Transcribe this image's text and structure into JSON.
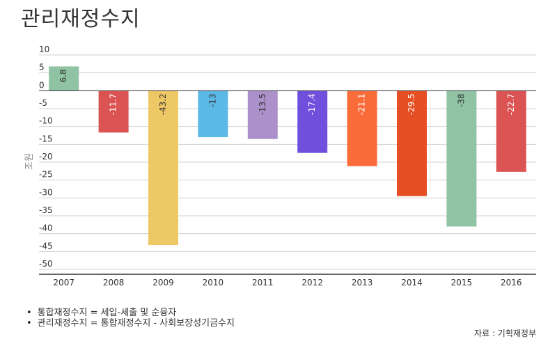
{
  "page": {
    "title": "관리재정수지",
    "notes": [
      "통합재정수지 = 세입-세출 및 순융자",
      "관리재정수지 = 통합재정수지 - 사회보장성기금수지"
    ],
    "source": "자료 : 기획재정부"
  },
  "chart_data": {
    "type": "bar",
    "title": "관리재정수지",
    "ylabel": "조원",
    "xlabel": "",
    "ylim": [
      -50,
      10
    ],
    "yticks": [
      10,
      5,
      0,
      -5,
      -10,
      -15,
      -20,
      -25,
      -30,
      -35,
      -40,
      -45,
      -50
    ],
    "grid": true,
    "categories": [
      "2007",
      "2008",
      "2009",
      "2010",
      "2011",
      "2012",
      "2013",
      "2014",
      "2015",
      "2016"
    ],
    "values": [
      6.8,
      -11.7,
      -43.2,
      -13,
      -13.5,
      -17.4,
      -21.1,
      -29.5,
      -38,
      -22.7
    ],
    "value_labels": [
      "6.8",
      "-11.7",
      "-43.2",
      "-13",
      "-13.5",
      "-17.4",
      "-21.1",
      "-29.5",
      "-38",
      "-22.7"
    ],
    "colors": [
      "#8fc3a3",
      "#dc5353",
      "#efc866",
      "#5cb8e4",
      "#ab90c9",
      "#704fdc",
      "#fb6c3b",
      "#e54f23",
      "#8fc3a3",
      "#dc5353"
    ],
    "label_colors": [
      "#333333",
      "#ffffff",
      "#333333",
      "#333333",
      "#333333",
      "#ffffff",
      "#ffffff",
      "#ffffff",
      "#333333",
      "#ffffff"
    ]
  }
}
